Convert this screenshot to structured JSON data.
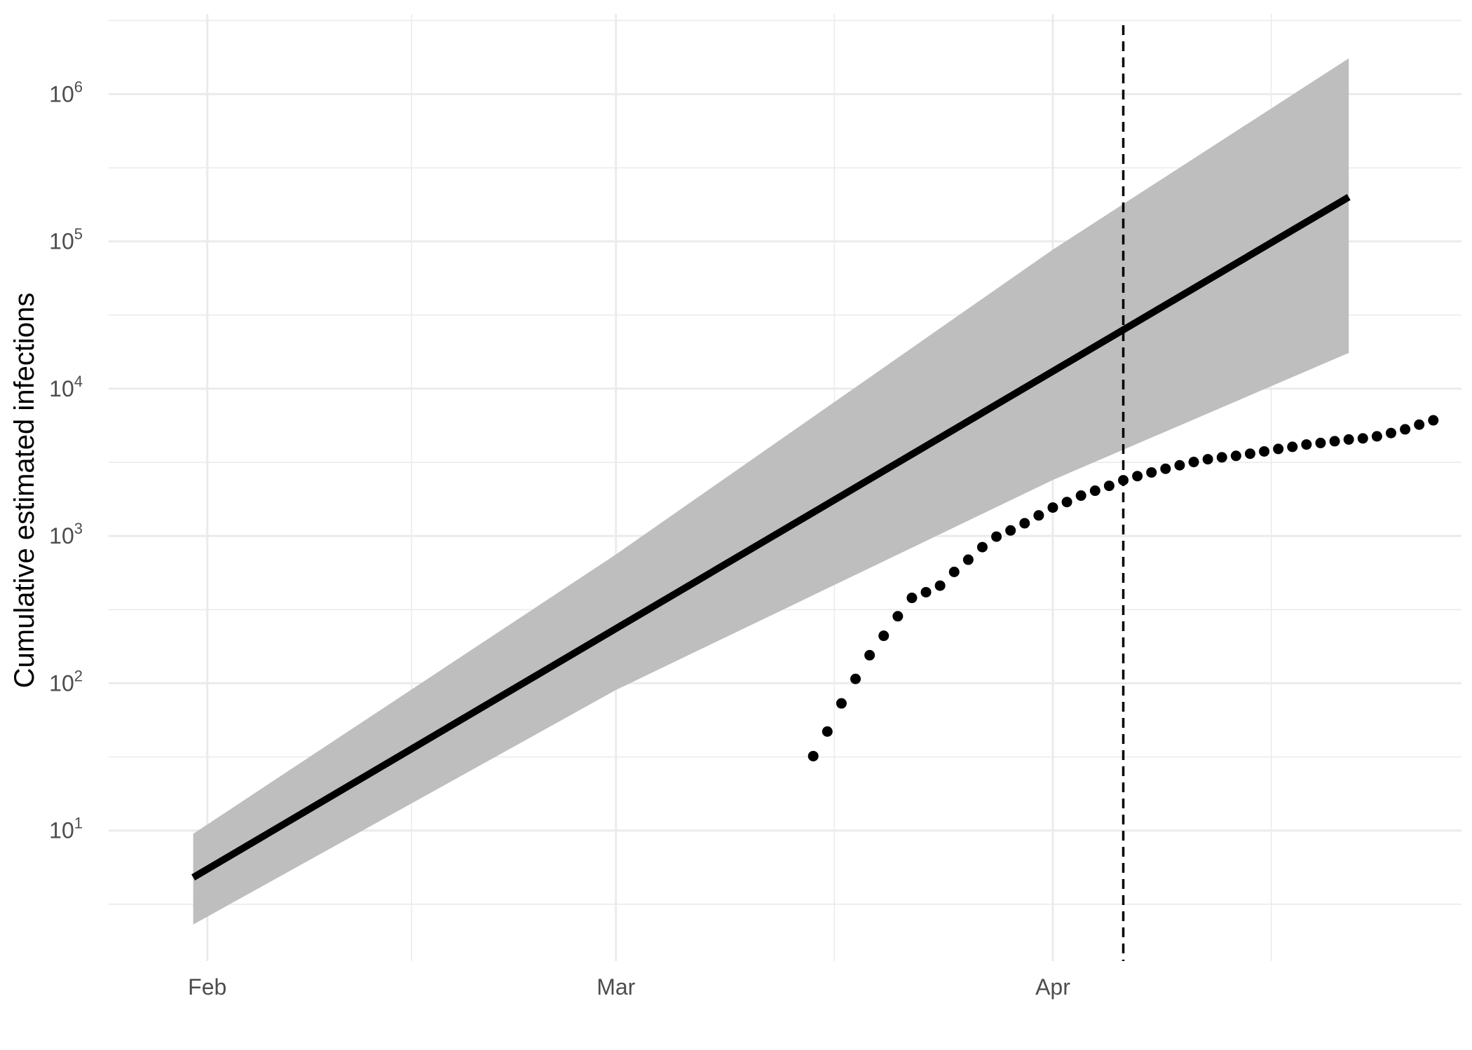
{
  "chart_data": {
    "type": "line",
    "title": "",
    "xlabel": "",
    "ylabel": "Cumulative estimated infections",
    "x_ticks": [
      "Feb",
      "Mar",
      "Apr"
    ],
    "x_tick_dates": [
      "2020-02-01",
      "2020-03-01",
      "2020-04-01"
    ],
    "x_range": [
      "2020-01-25",
      "2020-04-30"
    ],
    "y_scale": "log10",
    "y_ticks": [
      {
        "value": 10,
        "base": "10",
        "exp": "1"
      },
      {
        "value": 100,
        "base": "10",
        "exp": "2"
      },
      {
        "value": 1000,
        "base": "10",
        "exp": "3"
      },
      {
        "value": 10000,
        "base": "10",
        "exp": "4"
      },
      {
        "value": 100000,
        "base": "10",
        "exp": "5"
      },
      {
        "value": 1000000,
        "base": "10",
        "exp": "6"
      }
    ],
    "ylim": [
      1.3,
      3500000
    ],
    "grid": true,
    "legend": "none",
    "vline": {
      "x": "2020-04-06",
      "style": "dashed"
    },
    "series": [
      {
        "kind": "line",
        "x": [
          "2020-01-31",
          "2020-04-22"
        ],
        "values": [
          4.8,
          200000
        ]
      },
      {
        "kind": "band",
        "x": [
          "2020-01-31",
          "2020-03-01",
          "2020-04-01",
          "2020-04-22"
        ],
        "lower": [
          2.3,
          90,
          2400,
          17500
        ],
        "upper": [
          9.5,
          750,
          88000,
          1750000
        ]
      },
      {
        "kind": "points",
        "x": [
          "2020-03-15",
          "2020-03-16",
          "2020-03-17",
          "2020-03-18",
          "2020-03-19",
          "2020-03-20",
          "2020-03-21",
          "2020-03-22",
          "2020-03-23",
          "2020-03-24",
          "2020-03-25",
          "2020-03-26",
          "2020-03-27",
          "2020-03-28",
          "2020-03-29",
          "2020-03-30",
          "2020-03-31",
          "2020-04-01",
          "2020-04-02",
          "2020-04-03",
          "2020-04-04",
          "2020-04-05",
          "2020-04-06",
          "2020-04-07",
          "2020-04-08",
          "2020-04-09",
          "2020-04-10",
          "2020-04-11",
          "2020-04-12",
          "2020-04-13",
          "2020-04-14",
          "2020-04-15",
          "2020-04-16",
          "2020-04-17",
          "2020-04-18",
          "2020-04-19",
          "2020-04-20",
          "2020-04-21",
          "2020-04-22",
          "2020-04-23",
          "2020-04-24",
          "2020-04-25",
          "2020-04-26",
          "2020-04-27",
          "2020-04-28"
        ],
        "values": [
          32,
          47,
          73,
          107,
          155,
          210,
          285,
          380,
          415,
          460,
          570,
          690,
          840,
          990,
          1090,
          1220,
          1380,
          1560,
          1700,
          1880,
          2030,
          2190,
          2390,
          2550,
          2700,
          2860,
          3020,
          3180,
          3320,
          3420,
          3500,
          3620,
          3750,
          3900,
          4030,
          4180,
          4280,
          4400,
          4520,
          4600,
          4750,
          5000,
          5300,
          5700,
          6100
        ]
      }
    ]
  }
}
